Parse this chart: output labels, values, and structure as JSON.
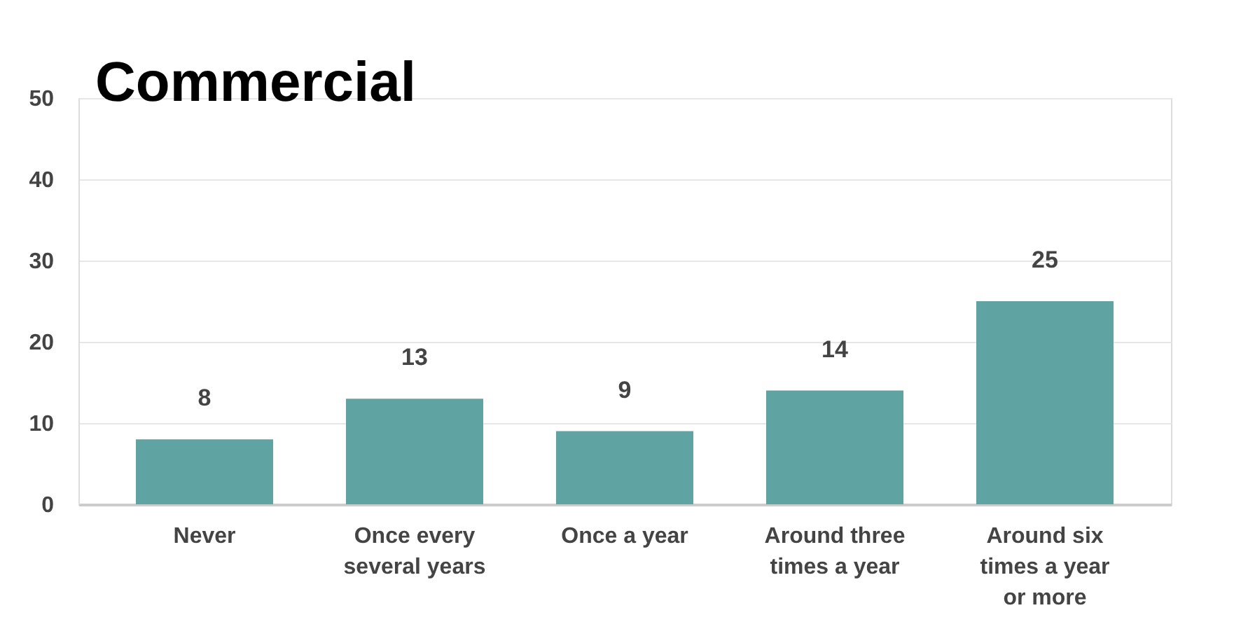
{
  "chart_data": {
    "type": "bar",
    "title": "Commercial",
    "categories": [
      "Never",
      "Once every several years",
      "Once a year",
      "Around three times a year",
      "Around six times a year or more"
    ],
    "values": [
      8,
      13,
      9,
      14,
      25
    ],
    "color": "#5fa3a3",
    "ylim": [
      0,
      50
    ],
    "yticks": [
      0,
      10,
      20,
      30,
      40,
      50
    ],
    "grid": "y",
    "data_labels": true
  }
}
